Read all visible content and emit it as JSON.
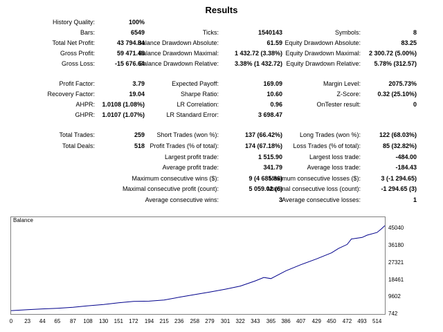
{
  "title": "Results",
  "stats": {
    "history_quality_label": "History Quality:",
    "history_quality": "100%",
    "bars_label": "Bars:",
    "bars": "6549",
    "ticks_label": "Ticks:",
    "ticks": "1540143",
    "symbols_label": "Symbols:",
    "symbols": "8",
    "net_profit_label": "Total Net Profit:",
    "net_profit": "43 794.84",
    "bal_dd_abs_label": "Balance Drawdown Absolute:",
    "bal_dd_abs": "61.59",
    "eq_dd_abs_label": "Equity Drawdown Absolute:",
    "eq_dd_abs": "83.25",
    "gross_profit_label": "Gross Profit:",
    "gross_profit": "59 471.48",
    "bal_dd_max_label": "Balance Drawdown Maximal:",
    "bal_dd_max": "1 432.72 (3.38%)",
    "eq_dd_max_label": "Equity Drawdown Maximal:",
    "eq_dd_max": "2 300.72 (5.00%)",
    "gross_loss_label": "Gross Loss:",
    "gross_loss": "-15 676.64",
    "bal_dd_rel_label": "Balance Drawdown Relative:",
    "bal_dd_rel": "3.38% (1 432.72)",
    "eq_dd_rel_label": "Equity Drawdown Relative:",
    "eq_dd_rel": "5.78% (312.57)",
    "profit_factor_label": "Profit Factor:",
    "profit_factor": "3.79",
    "expected_payoff_label": "Expected Payoff:",
    "expected_payoff": "169.09",
    "margin_level_label": "Margin Level:",
    "margin_level": "2075.73%",
    "recovery_factor_label": "Recovery Factor:",
    "recovery_factor": "19.04",
    "sharpe_label": "Sharpe Ratio:",
    "sharpe": "10.60",
    "zscore_label": "Z-Score:",
    "zscore": "0.32 (25.10%)",
    "ahpr_label": "AHPR:",
    "ahpr": "1.0108 (1.08%)",
    "lr_corr_label": "LR Correlation:",
    "lr_corr": "0.96",
    "ontester_label": "OnTester result:",
    "ontester": "0",
    "ghpr_label": "GHPR:",
    "ghpr": "1.0107 (1.07%)",
    "lr_std_label": "LR Standard Error:",
    "lr_std": "3 698.47",
    "total_trades_label": "Total Trades:",
    "total_trades": "259",
    "short_trades_label": "Short Trades (won %):",
    "short_trades": "137 (66.42%)",
    "long_trades_label": "Long Trades (won %):",
    "long_trades": "122 (68.03%)",
    "total_deals_label": "Total Deals:",
    "total_deals": "518",
    "profit_trades_label": "Profit Trades (% of total):",
    "profit_trades": "174 (67.18%)",
    "loss_trades_label": "Loss Trades (% of total):",
    "loss_trades": "85 (32.82%)",
    "largest_profit_label": "Largest profit trade:",
    "largest_profit": "1 515.90",
    "largest_loss_label": "Largest loss trade:",
    "largest_loss": "-484.00",
    "avg_profit_label": "Average profit trade:",
    "avg_profit": "341.79",
    "avg_loss_label": "Average loss trade:",
    "avg_loss": "-184.43",
    "max_cons_wins_label": "Maximum consecutive wins ($):",
    "max_cons_wins": "9 (4 685.86)",
    "max_cons_losses_label": "Maximum consecutive losses ($):",
    "max_cons_losses": "3 (-1 294.65)",
    "maxcons_profit_label": "Maximal consecutive profit (count):",
    "maxcons_profit": "5 059.02 (6)",
    "maxcons_loss_label": "Maximal consecutive loss (count):",
    "maxcons_loss": "-1 294.65 (3)",
    "avg_cons_wins_label": "Average consecutive wins:",
    "avg_cons_wins": "3",
    "avg_cons_losses_label": "Average consecutive losses:",
    "avg_cons_losses": "1"
  },
  "chart_data": {
    "type": "line",
    "title": "Balance",
    "xlabel": "",
    "ylabel": "",
    "x_ticks": [
      "0",
      "23",
      "44",
      "65",
      "87",
      "108",
      "130",
      "151",
      "172",
      "194",
      "215",
      "236",
      "258",
      "279",
      "301",
      "322",
      "343",
      "365",
      "386",
      "407",
      "429",
      "450",
      "472",
      "493",
      "514"
    ],
    "y_ticks": [
      "742",
      "9602",
      "18461",
      "27321",
      "36180",
      "45040"
    ],
    "xlim": [
      0,
      525
    ],
    "ylim": [
      742,
      49470
    ],
    "grid": false,
    "series": [
      {
        "color": "#00008b",
        "x": [
          0,
          23,
          44,
          65,
          87,
          108,
          130,
          151,
          172,
          194,
          215,
          236,
          258,
          279,
          301,
          322,
          343,
          355,
          365,
          386,
          407,
          429,
          450,
          460,
          472,
          478,
          493,
          500,
          514,
          520,
          525
        ],
        "y": [
          2500,
          3000,
          3400,
          3700,
          4200,
          5000,
          5700,
          6600,
          7300,
          7400,
          8000,
          9400,
          10800,
          12100,
          13600,
          15200,
          17900,
          19700,
          19100,
          23100,
          26300,
          29300,
          32400,
          34700,
          36800,
          39600,
          40400,
          41600,
          43000,
          44800,
          46500
        ]
      }
    ]
  }
}
